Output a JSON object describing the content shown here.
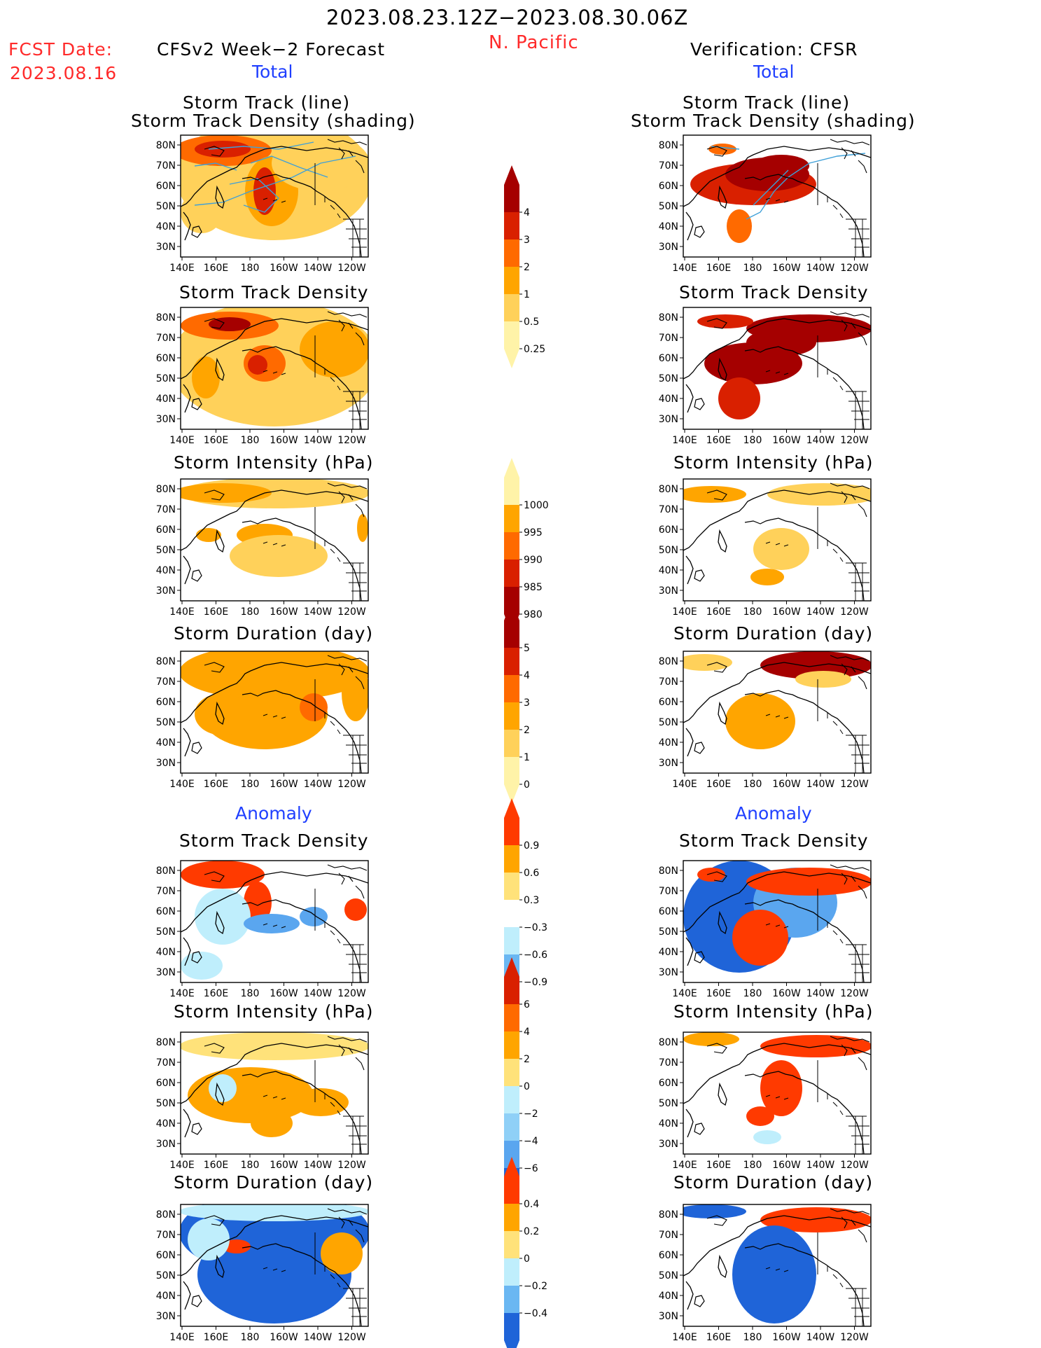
{
  "header": {
    "date_range": "2023.08.23.12Z−2023.08.30.06Z",
    "region": "N. Pacific",
    "fcst_label": "FCST Date:",
    "fcst_date": "2023.08.16",
    "left_title": "CFSv2 Week−2 Forecast",
    "right_title": "Verification: CFSR"
  },
  "sections": {
    "total": "Total",
    "anomaly": "Anomaly"
  },
  "panel_titles": {
    "track_line": "Storm Track (line)",
    "track_shading": "Storm Track Density (shading)",
    "density": "Storm Track Density",
    "intensity": "Storm Intensity (hPa)",
    "duration": "Storm Duration (day)"
  },
  "axes": {
    "lat": [
      "80N",
      "70N",
      "60N",
      "50N",
      "40N",
      "30N"
    ],
    "lon": [
      "140E",
      "160E",
      "180",
      "160W",
      "140W",
      "120W"
    ]
  },
  "colorbars": [
    {
      "id": "density-total",
      "labels": [
        "4",
        "3",
        "2",
        "1",
        "0.5",
        "0.25"
      ],
      "colors": [
        "#a50000",
        "#d92000",
        "#ff6a00",
        "#ffa500",
        "#ffd15a",
        "#fff3a8"
      ]
    },
    {
      "id": "intensity-total",
      "labels": [
        "1000",
        "995",
        "990",
        "985",
        "980"
      ],
      "colors": [
        "#fff3a8",
        "#ffa500",
        "#ff6a00",
        "#d92000",
        "#a50000"
      ]
    },
    {
      "id": "duration-total",
      "labels": [
        "5",
        "4",
        "3",
        "2",
        "1",
        "0"
      ],
      "colors": [
        "#a50000",
        "#d92000",
        "#ff6a00",
        "#ffa500",
        "#ffd15a",
        "#fff3a8"
      ]
    },
    {
      "id": "density-anom",
      "labels": [
        "0.9",
        "0.6",
        "0.3",
        "−0.3",
        "−0.6",
        "−0.9"
      ],
      "colors": [
        "#ff3a00",
        "#ffa500",
        "#ffe27a",
        "#ffffff",
        "#bfeefc",
        "#6ab7f2",
        "#1f64d8"
      ]
    },
    {
      "id": "intensity-anom",
      "labels": [
        "6",
        "4",
        "2",
        "0",
        "−2",
        "−4",
        "−6"
      ],
      "colors": [
        "#d92000",
        "#ff6a00",
        "#ffa500",
        "#ffe27a",
        "#bfeefc",
        "#8fd0f7",
        "#5aa6ef",
        "#1f64d8"
      ]
    },
    {
      "id": "duration-anom",
      "labels": [
        "0.4",
        "0.2",
        "0",
        "−0.2",
        "−0.4"
      ],
      "colors": [
        "#ff3a00",
        "#ffa500",
        "#ffe27a",
        "#bfeefc",
        "#6ab7f2",
        "#1f64d8"
      ]
    }
  ],
  "colors": {
    "map_frame": "#000000",
    "coast": "#000000",
    "track_line": "#3fa0d8"
  }
}
